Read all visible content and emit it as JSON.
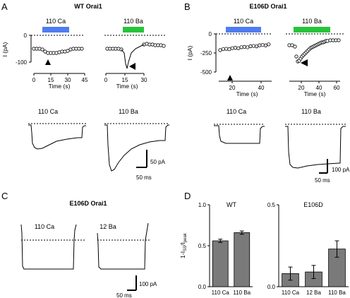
{
  "panels": {
    "A": {
      "letter": "A",
      "title": "WT Orai1",
      "time_course_ca": {
        "bar_label": "110 Ca",
        "bar_color": "#4f7cf3",
        "x_ticks": [
          "0",
          "15",
          "30",
          "45"
        ],
        "x_label": "Time (s)",
        "y_ticks": [
          "0",
          "-100"
        ],
        "y_label": "I (pA)"
      },
      "time_course_ba": {
        "bar_label": "110 Ba",
        "bar_color": "#27c43a",
        "x_ticks": [
          "0",
          "15",
          "30"
        ],
        "x_label": "Time (s)"
      },
      "trace_ca_label": "110 Ca",
      "trace_ba_label": "110 Ba",
      "scale_current": "50 pA",
      "scale_time": "50 ms"
    },
    "B": {
      "letter": "B",
      "title": "E106D Orai1",
      "time_course_ca": {
        "bar_label": "110 Ca",
        "bar_color": "#4f7cf3",
        "x_ticks": [
          "20",
          "40"
        ],
        "x_label": "Time (s)",
        "y_ticks": [
          "0",
          "-250",
          "-500"
        ],
        "y_label": "I (pA)"
      },
      "time_course_ba": {
        "bar_label": "110 Ba",
        "bar_color": "#27c43a",
        "x_ticks": [
          "20",
          "40",
          "60"
        ],
        "x_label": "Time (s)"
      },
      "trace_ca_label": "110 Ca",
      "trace_ba_label": "110 Ba",
      "scale_current": "100 pA",
      "scale_time": "50 ms"
    },
    "C": {
      "letter": "C",
      "title": "E106D Orai1",
      "trace_1_label": "110 Ca",
      "trace_2_label": "12 Ba",
      "scale_current": "100 pA",
      "scale_time": "50 ms"
    },
    "D": {
      "letter": "D",
      "y_label_main": "1-I",
      "y_label_sub1": "SS",
      "y_label_mid": "/I",
      "y_label_sub2": "peak"
    }
  },
  "chart_data": [
    {
      "type": "bar",
      "title": "WT",
      "categories": [
        "110 Ca",
        "110 Ba"
      ],
      "values": [
        0.56,
        0.66
      ],
      "errors": [
        0.02,
        0.02
      ],
      "ylim": [
        0,
        1.0
      ],
      "yticks": [
        "0.0",
        "0.5",
        "1.0"
      ],
      "bar_color": "#7a7a7a"
    },
    {
      "type": "bar",
      "title": "E106D",
      "categories": [
        "110 Ca",
        "12 Ba",
        "110 Ba"
      ],
      "values": [
        0.08,
        0.09,
        0.23
      ],
      "errors": [
        0.04,
        0.04,
        0.05
      ],
      "ylim": [
        0,
        0.5
      ],
      "yticks": [
        "0.0",
        "0.5"
      ],
      "bar_color": "#7a7a7a"
    }
  ]
}
